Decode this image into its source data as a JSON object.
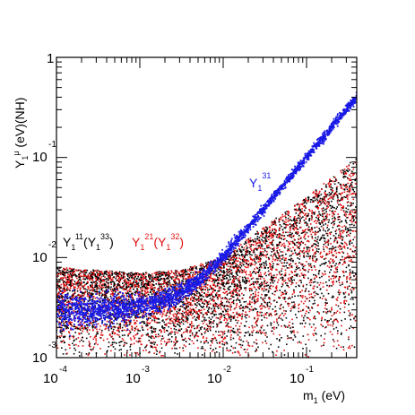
{
  "chart_data": {
    "type": "scatter",
    "xscale": "log",
    "yscale": "log",
    "xlim": [
      0.0001,
      0.4
    ],
    "ylim": [
      0.001,
      1
    ],
    "x_ticks": [
      {
        "value": 0.0001,
        "base": "10",
        "exp": "-4"
      },
      {
        "value": 0.001,
        "base": "10",
        "exp": "-3"
      },
      {
        "value": 0.01,
        "base": "10",
        "exp": "-2"
      },
      {
        "value": 0.1,
        "base": "10",
        "exp": "-1"
      }
    ],
    "y_ticks": [
      {
        "value": 0.001,
        "base": "10",
        "exp": "-3"
      },
      {
        "value": 0.01,
        "base": "10",
        "exp": "-2"
      },
      {
        "value": 0.1,
        "base": "10",
        "exp": "-1"
      },
      {
        "value": 1,
        "base": "1",
        "exp": ""
      }
    ],
    "ylabel": {
      "main": "Y",
      "sub": "1",
      "sup": "μ",
      "rest": " (eV)(NH)"
    },
    "xlabel": {
      "main": "m",
      "sub": "1",
      "rest": " (eV)"
    },
    "annotations": [
      {
        "text": "Y",
        "sub": "1",
        "sup": "31",
        "color": "#1a1ae6",
        "series": "blue"
      },
      {
        "text": "Y",
        "sub": "1",
        "sup": "11",
        "paren_sup": "33",
        "color": "#000000",
        "series": "black"
      },
      {
        "text": "Y",
        "sub": "1",
        "sup": "21",
        "paren_sup": "32",
        "color": "#e01010",
        "series": "red"
      }
    ],
    "series": [
      {
        "color": "#000000",
        "band": {
          "x": [
            0.0001,
            0.001,
            0.003,
            0.01,
            0.03,
            0.1,
            0.4
          ],
          "y_low": [
            0.001,
            0.001,
            0.001,
            0.001,
            0.001,
            0.001,
            0.001
          ],
          "y_high": [
            0.008,
            0.007,
            0.0075,
            0.01,
            0.02,
            0.04,
            0.1
          ]
        }
      },
      {
        "color": "#e01010",
        "band": {
          "x": [
            0.0001,
            0.001,
            0.003,
            0.01,
            0.03,
            0.1,
            0.4
          ],
          "y_low": [
            0.001,
            0.001,
            0.001,
            0.001,
            0.001,
            0.001,
            0.001
          ],
          "y_high": [
            0.008,
            0.007,
            0.0075,
            0.01,
            0.02,
            0.04,
            0.1
          ]
        }
      },
      {
        "color": "#1a1ae6",
        "curve": {
          "x": [
            0.0001,
            0.0003,
            0.001,
            0.002,
            0.003,
            0.005,
            0.01,
            0.02,
            0.05,
            0.1,
            0.2,
            0.4
          ],
          "y": [
            0.003,
            0.003,
            0.0032,
            0.0037,
            0.0043,
            0.0058,
            0.01,
            0.02,
            0.05,
            0.1,
            0.2,
            0.4
          ]
        }
      }
    ]
  }
}
